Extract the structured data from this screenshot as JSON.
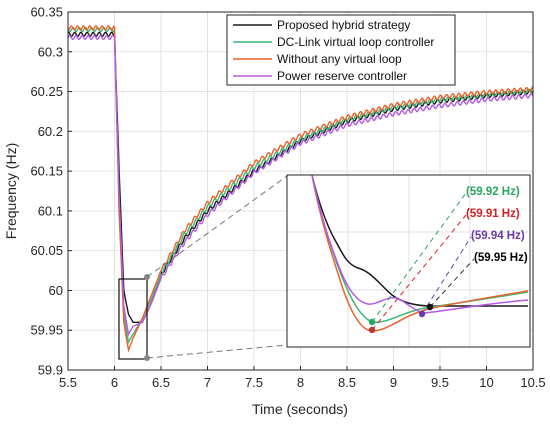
{
  "chart_data": {
    "type": "line",
    "xlabel": "Time (seconds)",
    "ylabel": "Frequency (Hz)",
    "xlim": [
      5.5,
      10.5
    ],
    "ylim": [
      59.9,
      60.35
    ],
    "xticks": [
      "5.5",
      "6",
      "6.5",
      "7",
      "7.5",
      "8",
      "8.5",
      "9",
      "9.5",
      "10",
      "10.5"
    ],
    "yticks": [
      "59.9",
      "59.95",
      "60",
      "60.05",
      "60.1",
      "60.15",
      "60.2",
      "60.25",
      "60.3",
      "60.35"
    ],
    "grid": true,
    "legend_position": "top-right",
    "series": [
      {
        "name": "Proposed hybrid strategy",
        "color": "#1a1a1a",
        "x": [
          5.5,
          6.0,
          6.05,
          6.1,
          6.15,
          6.2,
          6.3,
          6.4,
          6.5,
          6.75,
          7.0,
          7.5,
          8.0,
          8.5,
          9.0,
          9.5,
          10.0,
          10.5
        ],
        "y": [
          60.322,
          60.322,
          60.15,
          60.0,
          59.97,
          59.96,
          59.96,
          59.985,
          60.02,
          60.065,
          60.1,
          60.15,
          60.188,
          60.213,
          60.228,
          60.238,
          60.245,
          60.25
        ]
      },
      {
        "name": "DC-Link virtual loop controller",
        "color": "#3cb878",
        "x": [
          5.5,
          6.0,
          6.05,
          6.1,
          6.15,
          6.2,
          6.3,
          6.4,
          6.5,
          6.75,
          7.0,
          7.5,
          8.0,
          8.5,
          9.0,
          9.5,
          10.0,
          10.5
        ],
        "y": [
          60.328,
          60.328,
          60.1,
          59.97,
          59.935,
          59.945,
          59.965,
          59.99,
          60.02,
          60.07,
          60.105,
          60.155,
          60.19,
          60.215,
          60.23,
          60.24,
          60.246,
          60.251
        ]
      },
      {
        "name": "Without any virtual loop",
        "color": "#e8622a",
        "x": [
          5.5,
          6.0,
          6.05,
          6.1,
          6.15,
          6.2,
          6.3,
          6.4,
          6.5,
          6.75,
          7.0,
          7.5,
          8.0,
          8.5,
          9.0,
          9.5,
          10.0,
          10.5
        ],
        "y": [
          60.33,
          60.33,
          60.1,
          59.96,
          59.925,
          59.94,
          59.965,
          59.995,
          60.025,
          60.075,
          60.11,
          60.16,
          60.195,
          60.218,
          60.233,
          60.243,
          60.249,
          60.253
        ]
      },
      {
        "name": "Power reserve controller",
        "color": "#b45ae6",
        "x": [
          5.5,
          6.0,
          6.05,
          6.1,
          6.15,
          6.2,
          6.3,
          6.4,
          6.5,
          6.75,
          7.0,
          7.5,
          8.0,
          8.5,
          9.0,
          9.5,
          10.0,
          10.5
        ],
        "y": [
          60.318,
          60.318,
          60.12,
          59.98,
          59.945,
          59.955,
          59.96,
          59.985,
          60.015,
          60.06,
          60.095,
          60.148,
          60.185,
          60.208,
          60.222,
          60.232,
          60.24,
          60.245
        ]
      }
    ],
    "inset": {
      "annotations": [
        {
          "text": "(59.92 Hz)",
          "color": "#2aa563"
        },
        {
          "text": "(59.91 Hz)",
          "color": "#d81e1e"
        },
        {
          "text": "(59.94 Hz)",
          "color": "#6a3aa8"
        },
        {
          "text": "(59.95 Hz)",
          "color": "#000000"
        }
      ]
    }
  }
}
